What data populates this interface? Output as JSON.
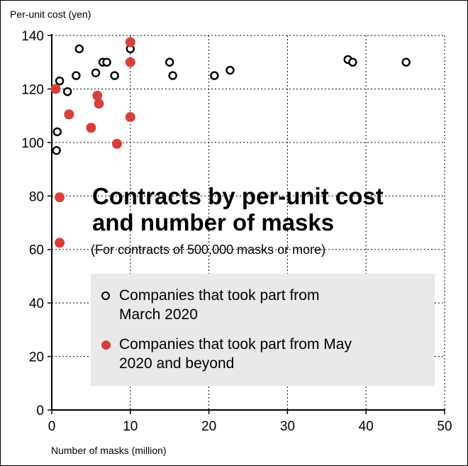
{
  "colors": {
    "series_march": "#000000",
    "series_may": "#d7403a",
    "grid": "#000000",
    "legend_bg": "#e9e9e9"
  },
  "chart_data": {
    "type": "scatter",
    "title": "Contracts by per-unit cost and number of masks",
    "title_lines": [
      "Contracts by per-unit cost",
      "and number of masks"
    ],
    "subtitle": "(For contracts of 500,000 masks or more)",
    "xlabel": "Number of masks (million)",
    "ylabel": "Per-unit cost (yen)",
    "xlim": [
      0,
      50
    ],
    "ylim": [
      0,
      140
    ],
    "xticks": [
      0,
      10,
      20,
      30,
      40,
      50
    ],
    "yticks": [
      0,
      20,
      40,
      60,
      80,
      100,
      120,
      140
    ],
    "grid": "dotted",
    "legend_position": "center-bottom",
    "series": [
      {
        "name": "Companies that took part from March 2020",
        "name_lines": [
          "Companies that took part from",
          "March 2020"
        ],
        "marker": "hollow-circle",
        "points": [
          [
            0.6,
            97
          ],
          [
            0.7,
            104
          ],
          [
            1.0,
            123
          ],
          [
            2.0,
            119
          ],
          [
            3.1,
            125
          ],
          [
            3.5,
            135
          ],
          [
            5.6,
            126
          ],
          [
            6.5,
            130
          ],
          [
            7.0,
            130
          ],
          [
            8.0,
            125
          ],
          [
            10.0,
            135
          ],
          [
            15.0,
            130
          ],
          [
            15.4,
            125
          ],
          [
            20.7,
            125
          ],
          [
            22.7,
            127
          ],
          [
            37.7,
            131
          ],
          [
            38.3,
            130
          ],
          [
            45.1,
            130
          ]
        ]
      },
      {
        "name": "Companies that took part from May 2020 and beyond",
        "name_lines": [
          "Companies that took part from May",
          "2020 and beyond"
        ],
        "marker": "filled-circle",
        "points": [
          [
            0.5,
            120
          ],
          [
            1.0,
            79.5
          ],
          [
            1.0,
            62.5
          ],
          [
            2.2,
            110.5
          ],
          [
            5.0,
            105.5
          ],
          [
            5.8,
            117.5
          ],
          [
            6.0,
            114.5
          ],
          [
            8.3,
            99.5
          ],
          [
            10.0,
            137.5
          ],
          [
            10.0,
            130
          ],
          [
            10.0,
            109.5
          ]
        ]
      }
    ]
  }
}
